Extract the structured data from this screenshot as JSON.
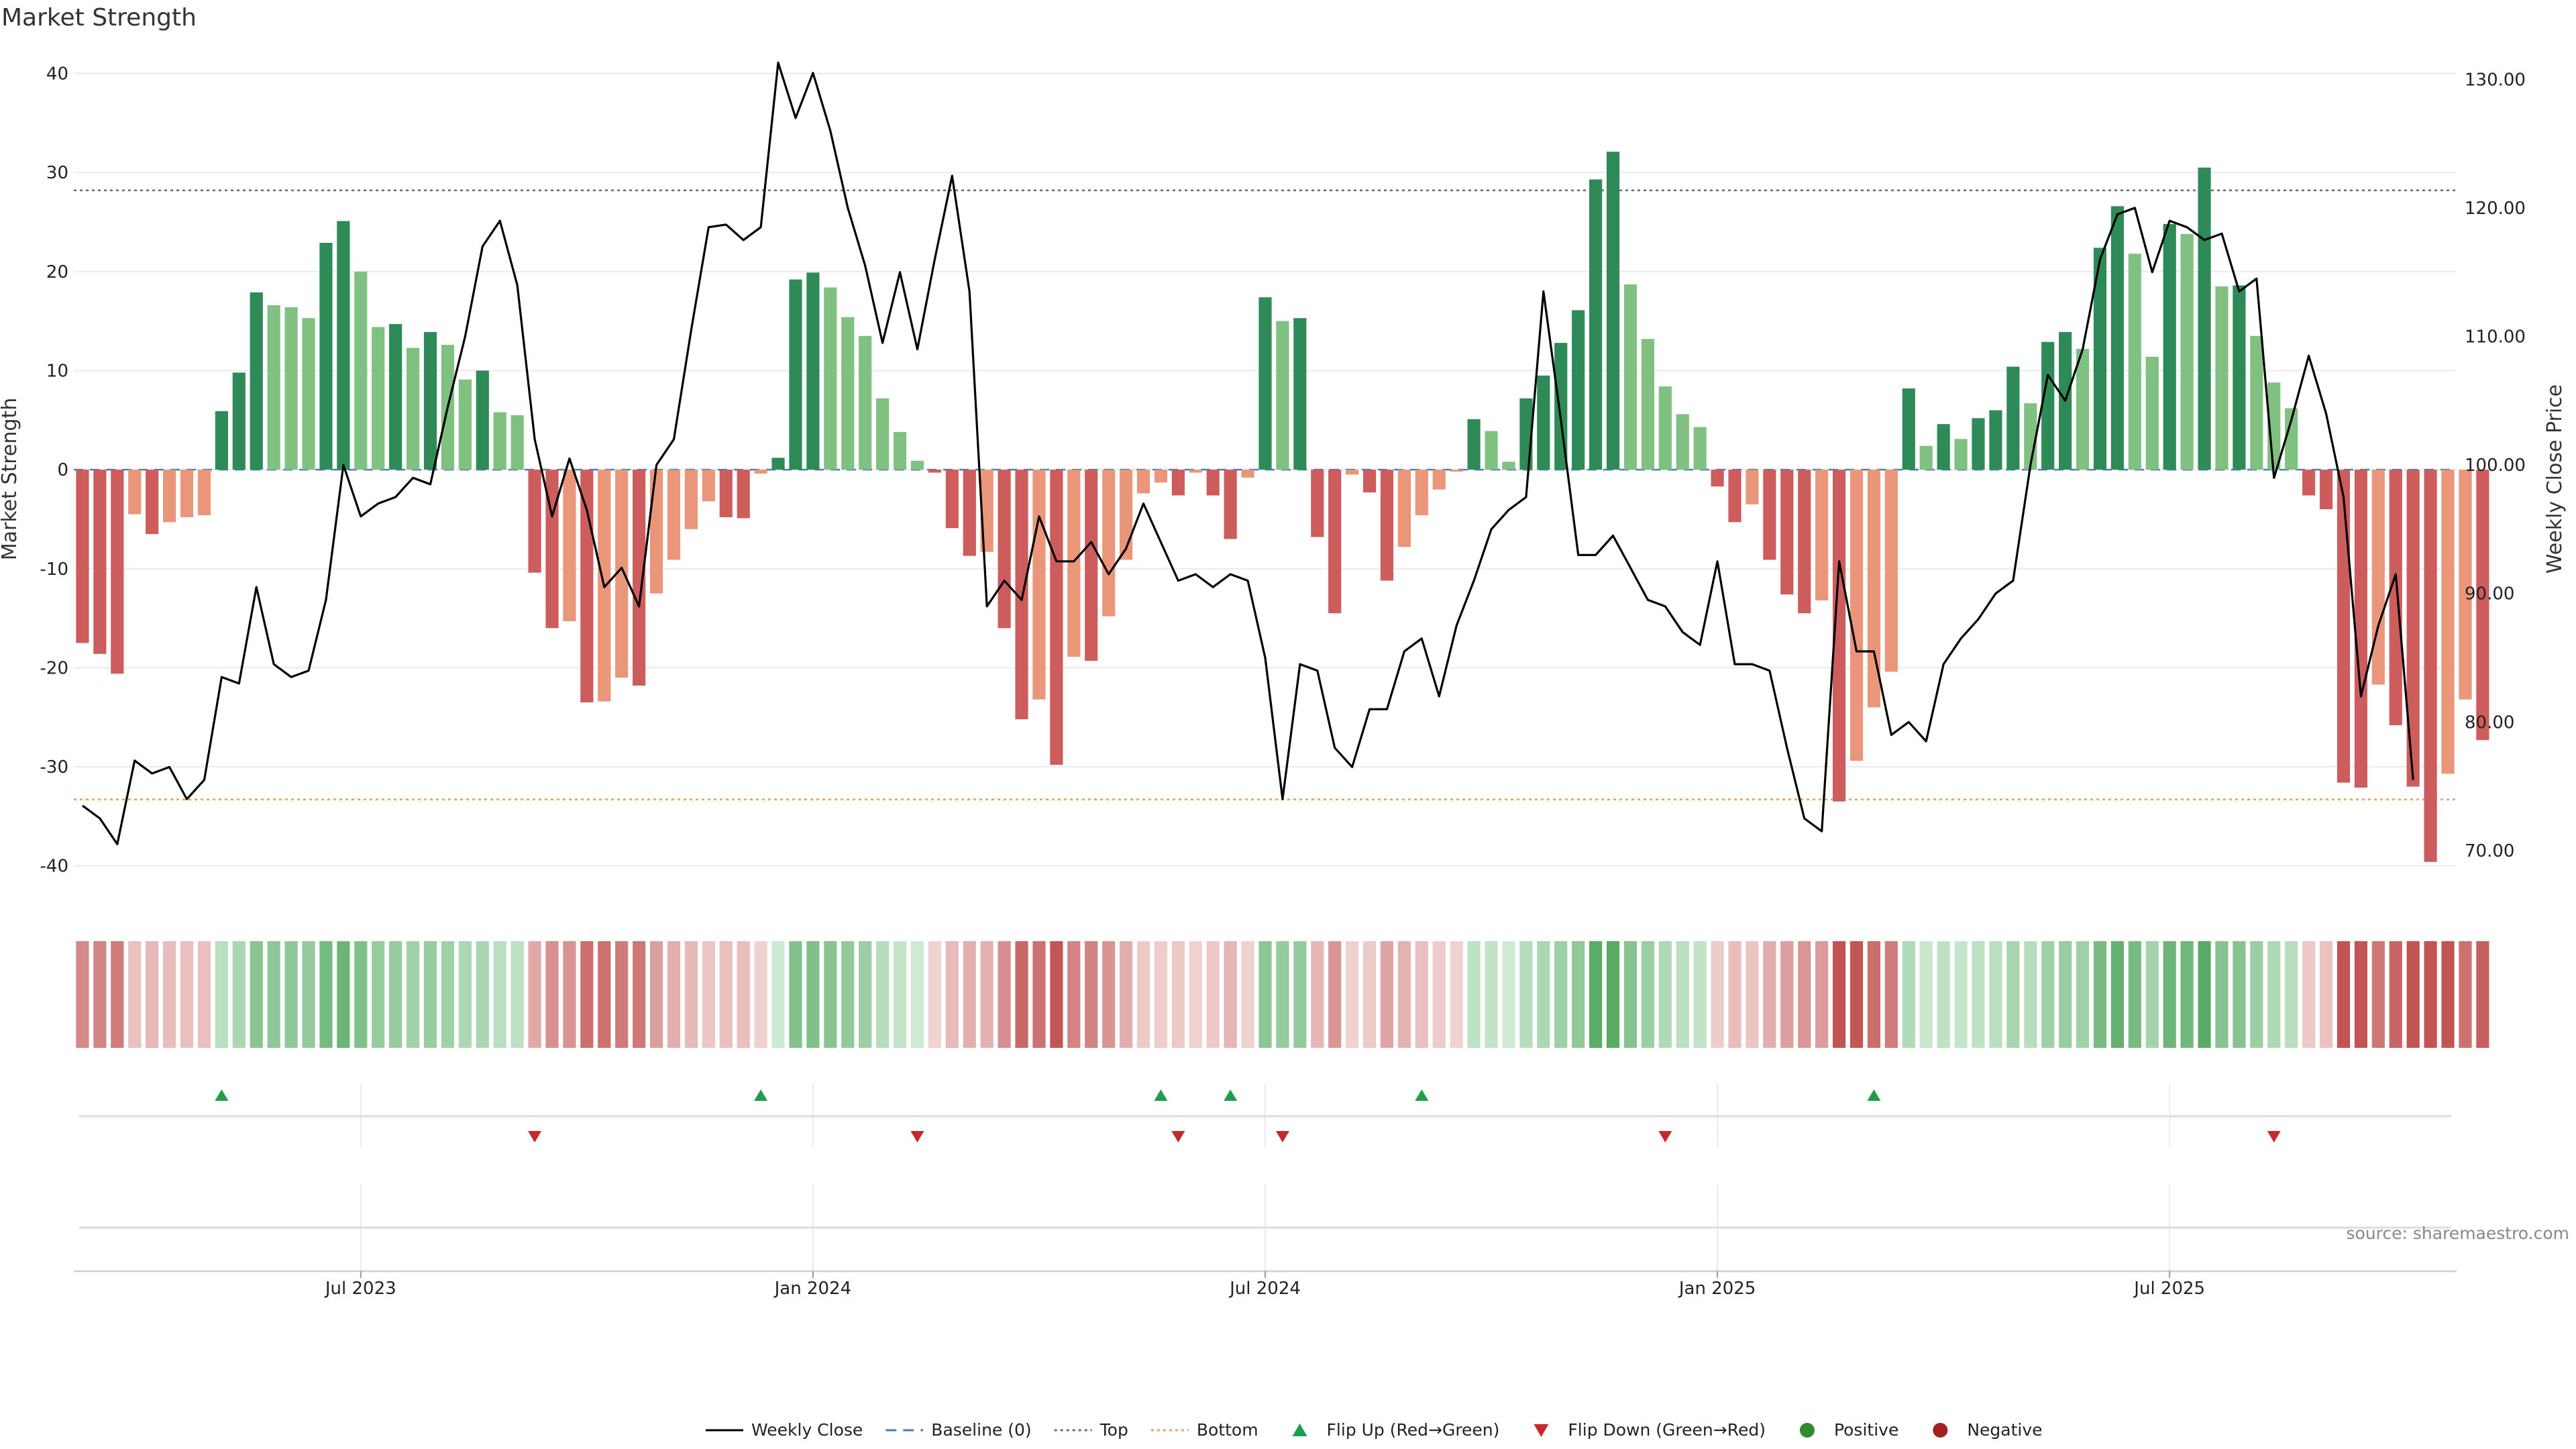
{
  "chart_data": {
    "type": "bar",
    "title": "Market Strength",
    "ylabel": "Market Strength",
    "y2label": "Weekly Close Price",
    "ylim": [
      -43,
      42
    ],
    "y2lim": [
      66.5,
      132
    ],
    "yticks": [
      -40,
      -30,
      -20,
      -10,
      0,
      10,
      20,
      30,
      40
    ],
    "y2ticks": [
      "70.00",
      "80.00",
      "90.00",
      "100.00",
      "110.00",
      "120.00",
      "130.00"
    ],
    "y2tick_values": [
      70,
      80,
      90,
      100,
      110,
      120,
      130
    ],
    "top_line": 28.2,
    "bottom_line": -33.3,
    "baseline": 0,
    "x_labels": [
      "Jul 2023",
      "Jan 2024",
      "Jul 2024",
      "Jan 2025",
      "Jul 2025"
    ],
    "x_label_weeks": [
      16,
      42,
      68,
      94,
      120
    ],
    "weeks": 137,
    "series": [
      {
        "name": "Market Strength",
        "values": [
          -17.5,
          -18.6,
          -20.6,
          -4.5,
          -6.5,
          -5.3,
          -4.8,
          -4.6,
          5.9,
          9.8,
          17.9,
          16.6,
          16.4,
          15.3,
          22.9,
          25.1,
          20.0,
          14.4,
          14.7,
          12.3,
          13.9,
          12.6,
          9.1,
          10.0,
          5.8,
          5.5,
          -10.4,
          -16.0,
          -15.3,
          -23.5,
          -23.4,
          -21.0,
          -21.8,
          -12.5,
          -9.1,
          -6.0,
          -3.2,
          -4.8,
          -4.9,
          -0.4,
          1.2,
          19.2,
          19.9,
          18.4,
          15.4,
          13.5,
          7.2,
          3.8,
          0.9,
          -0.3,
          -5.9,
          -8.7,
          -8.3,
          -16.0,
          -25.2,
          -23.2,
          -29.8,
          -18.9,
          -19.3,
          -14.8,
          -9.1,
          -2.4,
          -1.3,
          -2.6,
          -0.3,
          -2.6,
          -7.0,
          -0.8,
          17.4,
          15.0,
          15.3,
          -6.8,
          -14.5,
          -0.5,
          -2.3,
          -11.2,
          -7.8,
          -4.6,
          -2.0,
          -0.2,
          5.1,
          3.9,
          0.8,
          7.2,
          9.5,
          12.8,
          16.1,
          29.3,
          32.1,
          18.7,
          13.2,
          8.4,
          5.6,
          4.3,
          -1.7,
          -5.3,
          -3.5,
          -9.1,
          -12.6,
          -14.5,
          -13.2,
          -33.5,
          -29.4,
          -24.0,
          -20.4,
          8.2,
          2.4,
          4.6,
          3.1,
          5.2,
          6.0,
          10.4,
          6.7,
          12.9,
          13.9,
          12.2,
          22.4,
          26.6,
          21.8,
          11.4,
          24.8,
          23.8,
          30.5,
          18.5,
          18.6,
          13.5,
          8.8,
          6.2,
          -2.6,
          -4.0,
          -31.6,
          -32.1,
          -21.7,
          -25.8,
          -32.0,
          -39.6,
          -30.7,
          -23.2,
          -27.3
        ]
      },
      {
        "name": "Weekly Close",
        "values": [
          73.5,
          72.5,
          70.5,
          77.0,
          76.0,
          76.5,
          74.0,
          75.5,
          83.5,
          83.0,
          90.5,
          84.5,
          83.5,
          84.0,
          89.5,
          100.0,
          96.0,
          97.0,
          97.5,
          99.0,
          98.5,
          104.5,
          110.0,
          117.0,
          119.0,
          114.0,
          102.0,
          96.0,
          100.5,
          96.5,
          90.5,
          92.0,
          89.0,
          100.0,
          102.0,
          110.5,
          118.5,
          118.7,
          117.5,
          118.5,
          131.3,
          127.0,
          130.5,
          126.0,
          120.0,
          115.5,
          109.5,
          115.0,
          109.0,
          116.0,
          122.5,
          113.5,
          89.0,
          91.0,
          89.5,
          96.0,
          92.5,
          92.5,
          94.0,
          91.5,
          93.5,
          97.0,
          94.0,
          91.0,
          91.5,
          90.5,
          91.5,
          91.0,
          85.0,
          74.0,
          84.5,
          84.0,
          78.0,
          76.5,
          81.0,
          81.0,
          85.5,
          86.5,
          82.0,
          87.5,
          91.0,
          95.0,
          96.5,
          97.5,
          113.5,
          103.5,
          93.0,
          93.0,
          94.5,
          92.0,
          89.5,
          89.0,
          87.0,
          86.0,
          92.5,
          84.5,
          84.5,
          84.0,
          78.0,
          72.5,
          71.5,
          92.5,
          85.5,
          85.5,
          79.0,
          80.0,
          78.5,
          84.5,
          86.5,
          88.0,
          90.0,
          91.0,
          100.0,
          107.0,
          105.0,
          109.0,
          116.0,
          119.5,
          120.0,
          115.0,
          119.0,
          118.5,
          117.5,
          118.0,
          113.5,
          114.5,
          99.0,
          103.5,
          108.5,
          104.0,
          97.5,
          82.0,
          87.5,
          91.5,
          75.5
        ]
      }
    ],
    "flip_up_weeks": [
      8,
      39,
      62,
      66,
      77,
      103
    ],
    "flip_down_weeks": [
      26,
      48,
      63,
      69,
      91,
      126
    ],
    "legend": [
      {
        "label": "Weekly Close",
        "marker": "line-solid",
        "color": "#000000"
      },
      {
        "label": "Baseline (0)",
        "marker": "line-dashed",
        "color": "#4a7fb5"
      },
      {
        "label": "Top",
        "marker": "line-dotted",
        "color": "#7a5d8a"
      },
      {
        "label": "Bottom",
        "marker": "line-dotted",
        "color": "#e8a064"
      },
      {
        "label": "Flip Up (Red→Green)",
        "marker": "triangle-up",
        "color": "#1e9e4a"
      },
      {
        "label": "Flip Down (Green→Red)",
        "marker": "triangle-down",
        "color": "#c62828"
      },
      {
        "label": "Positive",
        "marker": "circle",
        "color": "#2e8b2e"
      },
      {
        "label": "Negative",
        "marker": "circle",
        "color": "#a31f1f"
      }
    ],
    "legend_position": "bottom-center",
    "grid": true,
    "source": "source: sharemaestro.com",
    "colors": {
      "pos_strong": "#2e8b57",
      "pos_light": "#80c080",
      "neg_strong": "#cd5c5c",
      "neg_light": "#e9967a",
      "close_line": "#000000",
      "top_line": "#7a5d8a",
      "bottom_line": "#e8a064",
      "baseline": "#4a7fb5"
    }
  }
}
